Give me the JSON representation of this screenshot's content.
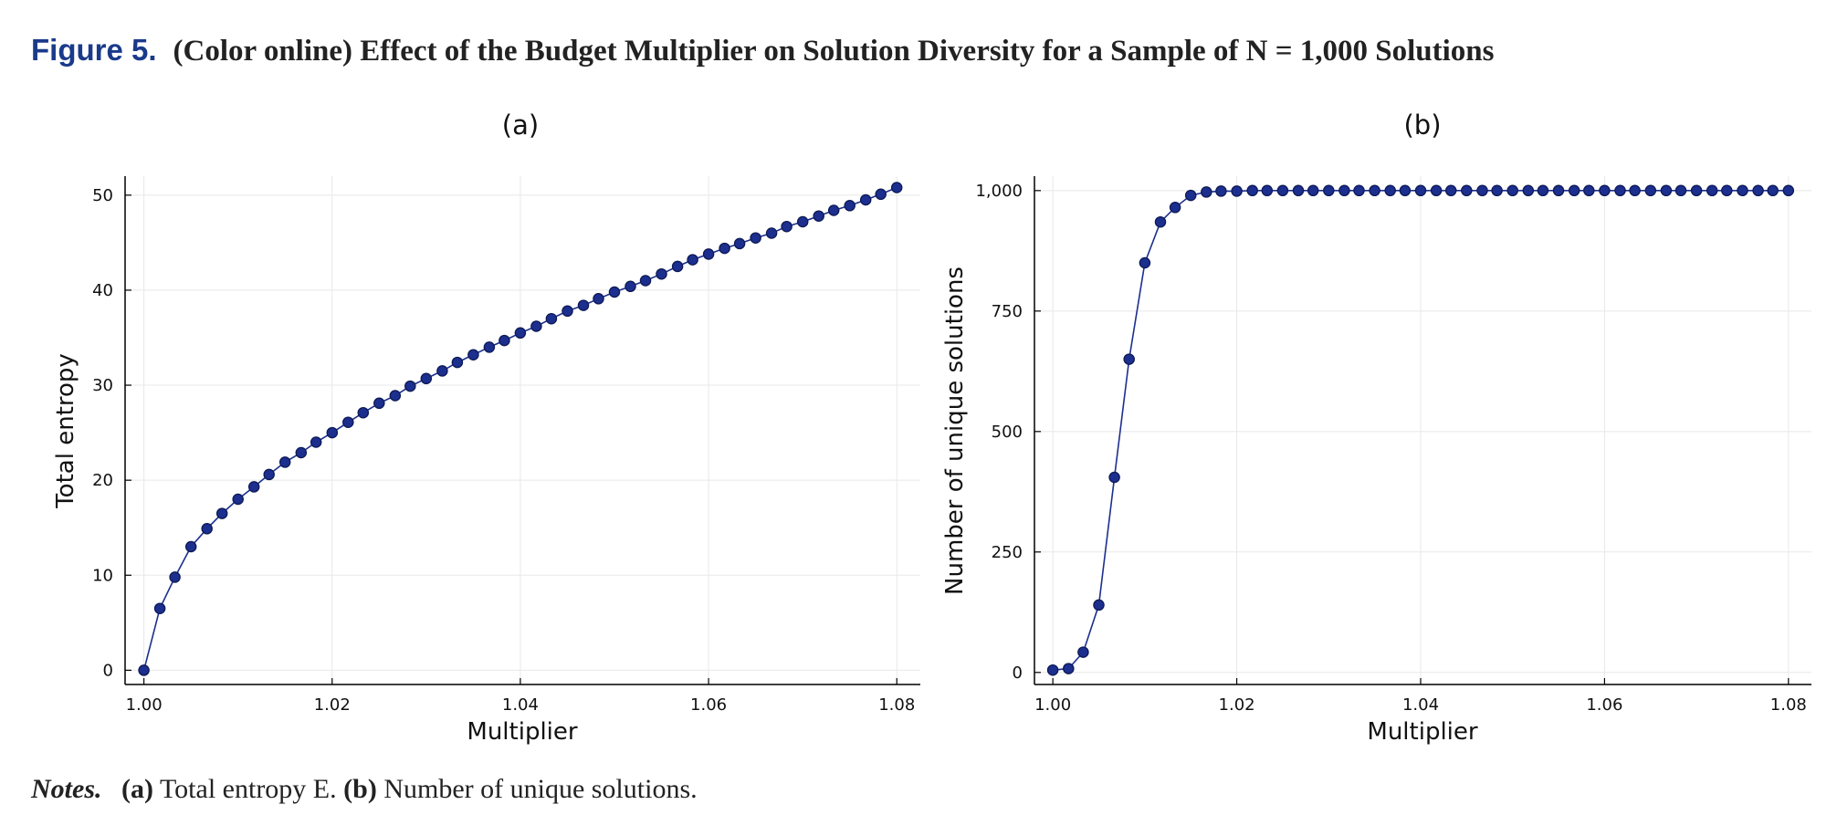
{
  "figure": {
    "label": "Figure 5.",
    "title": "(Color online) Effect of the Budget Multiplier on Solution Diversity for a Sample of N = 1,000 Solutions"
  },
  "notes": {
    "label": "Notes.",
    "a_tag": "(a)",
    "a_text": "Total entropy E.",
    "b_tag": "(b)",
    "b_text": "Number of unique solutions."
  },
  "colors": {
    "series": "#1c2f8f",
    "marker_edge": "#0d1a55",
    "grid": "#e8e8e8",
    "axis": "#000000"
  },
  "chart_data": [
    {
      "type": "line",
      "panel": "(a)",
      "title": "(a)",
      "xlabel": "Multiplier",
      "ylabel": "Total entropy",
      "xlim": [
        0.998,
        1.0825
      ],
      "ylim": [
        -1.5,
        52
      ],
      "xticks": [
        1.0,
        1.02,
        1.04,
        1.06,
        1.08
      ],
      "xtick_labels": [
        "1.00",
        "1.02",
        "1.04",
        "1.06",
        "1.08"
      ],
      "yticks": [
        0,
        10,
        20,
        30,
        40,
        50
      ],
      "ytick_labels": [
        "0",
        "10",
        "20",
        "30",
        "40",
        "50"
      ],
      "grid": true,
      "legend": "none",
      "x": [
        1.0,
        1.0017,
        1.0033,
        1.005,
        1.0067,
        1.0083,
        1.01,
        1.0117,
        1.0133,
        1.015,
        1.0167,
        1.0183,
        1.02,
        1.0217,
        1.0233,
        1.025,
        1.0267,
        1.0283,
        1.03,
        1.0317,
        1.0333,
        1.035,
        1.0367,
        1.0383,
        1.04,
        1.0417,
        1.0433,
        1.045,
        1.0467,
        1.0483,
        1.05,
        1.0517,
        1.0533,
        1.055,
        1.0567,
        1.0583,
        1.06,
        1.0617,
        1.0633,
        1.065,
        1.0667,
        1.0683,
        1.07,
        1.0717,
        1.0733,
        1.075,
        1.0767,
        1.0783,
        1.08
      ],
      "y": [
        0.0,
        6.5,
        9.8,
        13.0,
        14.9,
        16.5,
        18.0,
        19.3,
        20.6,
        21.9,
        22.9,
        24.0,
        25.0,
        26.1,
        27.1,
        28.1,
        28.9,
        29.9,
        30.7,
        31.5,
        32.4,
        33.2,
        34.0,
        34.7,
        35.5,
        36.2,
        37.0,
        37.8,
        38.4,
        39.1,
        39.8,
        40.4,
        41.0,
        41.7,
        42.5,
        43.2,
        43.8,
        44.4,
        44.9,
        45.5,
        46.0,
        46.7,
        47.2,
        47.8,
        48.4,
        48.9,
        49.5,
        50.1,
        50.8
      ]
    },
    {
      "type": "line",
      "panel": "(b)",
      "title": "(b)",
      "xlabel": "Multiplier",
      "ylabel": "Number of unique solutions",
      "xlim": [
        0.998,
        1.0825
      ],
      "ylim": [
        -25,
        1030
      ],
      "xticks": [
        1.0,
        1.02,
        1.04,
        1.06,
        1.08
      ],
      "xtick_labels": [
        "1.00",
        "1.02",
        "1.04",
        "1.06",
        "1.08"
      ],
      "yticks": [
        0,
        250,
        500,
        750,
        1000
      ],
      "ytick_labels": [
        "0",
        "250",
        "500",
        "750",
        "1,000"
      ],
      "grid": true,
      "legend": "none",
      "x": [
        1.0,
        1.0017,
        1.0033,
        1.005,
        1.0067,
        1.0083,
        1.01,
        1.0117,
        1.0133,
        1.015,
        1.0167,
        1.0183,
        1.02,
        1.0217,
        1.0233,
        1.025,
        1.0267,
        1.0283,
        1.03,
        1.0317,
        1.0333,
        1.035,
        1.0367,
        1.0383,
        1.04,
        1.0417,
        1.0433,
        1.045,
        1.0467,
        1.0483,
        1.05,
        1.0517,
        1.0533,
        1.055,
        1.0567,
        1.0583,
        1.06,
        1.0617,
        1.0633,
        1.065,
        1.0667,
        1.0683,
        1.07,
        1.0717,
        1.0733,
        1.075,
        1.0767,
        1.0783,
        1.08
      ],
      "y": [
        5,
        8,
        42,
        140,
        405,
        650,
        850,
        935,
        965,
        990,
        997,
        999,
        999,
        1000,
        1000,
        1000,
        1000,
        1000,
        1000,
        1000,
        1000,
        1000,
        1000,
        1000,
        1000,
        1000,
        1000,
        1000,
        1000,
        1000,
        1000,
        1000,
        1000,
        1000,
        1000,
        1000,
        1000,
        1000,
        1000,
        1000,
        1000,
        1000,
        1000,
        1000,
        1000,
        1000,
        1000,
        1000,
        1000
      ]
    }
  ]
}
